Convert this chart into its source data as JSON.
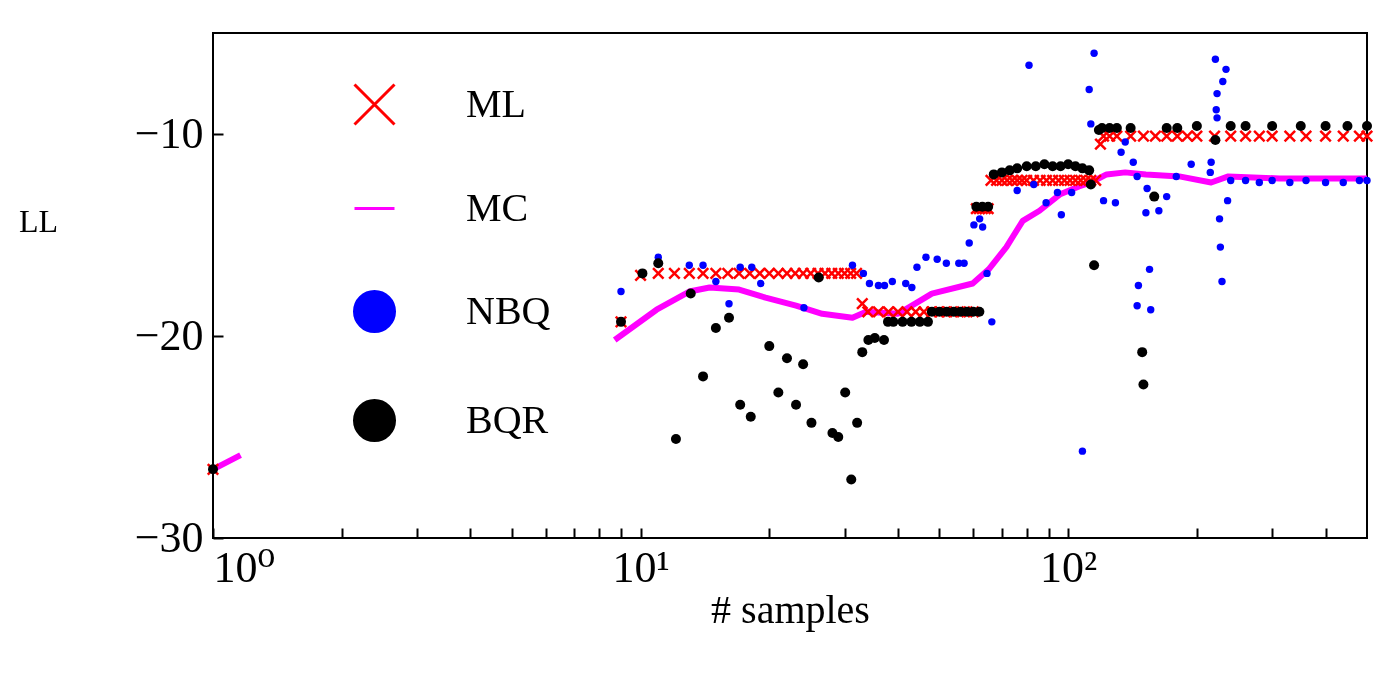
{
  "chart_data": {
    "type": "scatter",
    "xlabel": "# samples",
    "ylabel": "LL",
    "log": "x",
    "grid": false,
    "legend": "top left",
    "xlim": [
      1,
      500
    ],
    "ylim": [
      -30,
      -5
    ],
    "xticks": [
      {
        "value": 1,
        "label": "10⁰"
      },
      {
        "value": 2,
        "label": null
      },
      {
        "value": 3,
        "label": null
      },
      {
        "value": 4,
        "label": null
      },
      {
        "value": 5,
        "label": null
      },
      {
        "value": 6,
        "label": null
      },
      {
        "value": 7,
        "label": null
      },
      {
        "value": 8,
        "label": null
      },
      {
        "value": 9,
        "label": null
      },
      {
        "value": 10,
        "label": "10¹"
      },
      {
        "value": 20,
        "label": null
      },
      {
        "value": 30,
        "label": null
      },
      {
        "value": 40,
        "label": null
      },
      {
        "value": 50,
        "label": null
      },
      {
        "value": 60,
        "label": null
      },
      {
        "value": 70,
        "label": null
      },
      {
        "value": 80,
        "label": null
      },
      {
        "value": 90,
        "label": null
      },
      {
        "value": 100,
        "label": "10²"
      },
      {
        "value": 200,
        "label": null
      },
      {
        "value": 300,
        "label": null
      },
      {
        "value": 400,
        "label": null
      }
    ],
    "yticks": [
      -30,
      -20,
      -10
    ],
    "series": [
      {
        "name": "ML",
        "marker": "cross",
        "color": "#ff0000",
        "x": [
          1,
          9.0,
          10.0,
          11,
          12,
          13,
          14,
          15,
          16,
          17,
          18,
          19,
          20,
          21,
          22,
          23,
          24,
          25,
          26,
          27,
          28,
          29,
          30,
          31,
          32,
          33,
          34,
          36,
          38,
          40,
          42,
          44,
          46,
          48,
          50,
          52,
          54,
          56,
          58,
          60,
          61,
          62,
          63,
          64,
          65,
          66,
          68,
          70,
          72,
          74,
          76,
          78,
          80,
          83,
          86,
          89,
          92,
          95,
          98,
          101,
          104,
          107,
          110,
          113,
          116,
          119,
          121,
          125,
          130,
          140,
          150,
          160,
          170,
          180,
          190,
          200,
          220,
          240,
          260,
          280,
          300,
          330,
          360,
          400,
          440,
          480,
          500
        ],
        "values": [
          -26.6,
          -19.3,
          -17.0,
          -16.9,
          -16.9,
          -16.9,
          -16.9,
          -16.9,
          -16.9,
          -16.9,
          -16.9,
          -16.9,
          -16.9,
          -16.9,
          -16.9,
          -16.9,
          -16.9,
          -16.9,
          -16.9,
          -16.9,
          -16.9,
          -16.9,
          -16.9,
          -16.9,
          -16.9,
          -18.4,
          -18.8,
          -18.8,
          -18.8,
          -18.8,
          -18.8,
          -18.8,
          -18.8,
          -18.8,
          -18.8,
          -18.8,
          -18.8,
          -18.8,
          -18.8,
          -18.8,
          -13.7,
          -13.7,
          -13.7,
          -13.7,
          -13.7,
          -12.3,
          -12.3,
          -12.3,
          -12.3,
          -12.3,
          -12.3,
          -12.3,
          -12.3,
          -12.3,
          -12.3,
          -12.3,
          -12.3,
          -12.3,
          -12.3,
          -12.3,
          -12.3,
          -12.3,
          -12.3,
          -12.3,
          -12.3,
          -10.5,
          -10.1,
          -10.1,
          -10.1,
          -10.1,
          -10.1,
          -10.1,
          -10.1,
          -10.1,
          -10.1,
          -10.1,
          -10.1,
          -10.1,
          -10.1,
          -10.1,
          -10.1,
          -10.1,
          -10.1,
          -10.1,
          -10.1,
          -10.1,
          -10.1
        ]
      },
      {
        "name": "MC",
        "type": "line",
        "marker": "none",
        "line_style": "solid",
        "color": "#ff00ff",
        "x": [
          1,
          1.16,
          3,
          8.7,
          10.9,
          13.0,
          14.5,
          17.0,
          19.6,
          23.1,
          26.6,
          31.3,
          33.7,
          40,
          45.5,
          48.0,
          59.8,
          65.2,
          71.7,
          78.3,
          85.7,
          95.5,
          106,
          113,
          123,
          136,
          152,
          182,
          216,
          237,
          312,
          372,
          500
        ],
        "values": [
          -26.6,
          -25.9,
          null,
          -20.2,
          -18.7,
          -17.8,
          -17.6,
          -17.7,
          -18.1,
          -18.5,
          -18.9,
          -19.1,
          -18.8,
          -18.9,
          -18.2,
          -17.9,
          -17.4,
          -16.7,
          -15.6,
          -14.3,
          -13.8,
          -13.0,
          -12.6,
          -12.4,
          -12.0,
          -11.9,
          -12.0,
          -12.1,
          -12.4,
          -12.1,
          -12.2,
          -12.2,
          -12.2
        ]
      },
      {
        "name": "NBQ",
        "marker": "circle",
        "color": "#0000ff",
        "x": [
          9.0,
          11.0,
          13.0,
          14.0,
          15.0,
          16.1,
          17.1,
          18.2,
          19.1,
          24.1,
          31.3,
          33.2,
          34.3,
          36.0,
          37.2,
          38.8,
          41.7,
          43.1,
          44.3,
          46.5,
          49.4,
          51.9,
          55.5,
          57.1,
          58.7,
          60.2,
          62.1,
          63.1,
          64.6,
          66.3,
          76.0,
          81,
          83.1,
          88.8,
          94.4,
          96.4,
          101.9,
          108,
          112,
          113,
          115,
          121,
          129,
          133,
          136,
          142,
          145,
          145,
          146,
          152,
          153,
          155,
          156,
          163,
          170,
          179,
          194,
          215,
          216,
          221,
          222,
          223,
          223,
          226,
          227,
          229,
          230,
          234,
          236,
          240,
          260,
          280,
          300,
          330,
          360,
          400,
          440,
          480,
          500
        ],
        "values": [
          -17.8,
          -16.1,
          -16.5,
          -16.5,
          -17.3,
          -18.4,
          -16.6,
          -16.6,
          -17.4,
          -18.6,
          -16.5,
          -16.9,
          -17.4,
          -17.5,
          -17.5,
          -17.3,
          -17.4,
          -17.6,
          -16.6,
          -16.1,
          -16.2,
          -16.4,
          -16.4,
          -16.4,
          -15.4,
          -14.5,
          -14.2,
          -14.6,
          -16.9,
          -19.3,
          -12.8,
          -6.6,
          -12.5,
          -13.4,
          -12.9,
          -14.0,
          -12.9,
          -25.7,
          -7.8,
          -9.5,
          -6.0,
          -13.3,
          -13.4,
          -10.9,
          -10.4,
          -11.4,
          -12.1,
          -18.5,
          -17.5,
          -13.9,
          -12.7,
          -16.7,
          -18.7,
          -13.8,
          -13.1,
          -12.1,
          -11.5,
          -11.9,
          -11.4,
          -6.3,
          -8.8,
          -8.0,
          -9.2,
          -14.2,
          -15.6,
          -17.3,
          -7.4,
          -6.8,
          -13.3,
          -12.3,
          -12.3,
          -12.4,
          -12.3,
          -12.4,
          -12.3,
          -12.4,
          -12.4,
          -12.3,
          -12.3
        ]
      },
      {
        "name": "BQR",
        "marker": "circle",
        "color": "#000000",
        "x": [
          1,
          9.0,
          10.1,
          11.0,
          12.1,
          13.1,
          14.0,
          15.0,
          16.1,
          17.1,
          18.1,
          20.0,
          21.0,
          22.0,
          23.1,
          24.0,
          25.1,
          26.1,
          28.1,
          29.0,
          30.1,
          31.1,
          32.1,
          33.0,
          34.1,
          35.3,
          37.1,
          37.9,
          39,
          41,
          43,
          45,
          47,
          48,
          50,
          52,
          54,
          56,
          58,
          60,
          62,
          61,
          63,
          65,
          67,
          70,
          73,
          76,
          80,
          84,
          88,
          92,
          96,
          100,
          104,
          108,
          112,
          113,
          115,
          118,
          120,
          125,
          130,
          140,
          149,
          150,
          159,
          170,
          180,
          200,
          221,
          240,
          260,
          300,
          350,
          400,
          450,
          500
        ],
        "values": [
          -26.6,
          -19.3,
          -16.9,
          -16.4,
          -25.1,
          -17.9,
          -22.0,
          -19.6,
          -19.1,
          -23.4,
          -24.0,
          -20.5,
          -22.8,
          -21.1,
          -23.4,
          -21.4,
          -24.3,
          -17.1,
          -24.8,
          -25.0,
          -22.8,
          -27.1,
          -24.3,
          -20.8,
          -20.2,
          -20.1,
          -20.2,
          -19.3,
          -19.3,
          -19.3,
          -19.3,
          -19.3,
          -19.3,
          -18.8,
          -18.8,
          -18.8,
          -18.8,
          -18.8,
          -18.8,
          -18.8,
          -18.8,
          -13.6,
          -13.6,
          -13.6,
          -12.0,
          -11.9,
          -11.8,
          -11.7,
          -11.6,
          -11.6,
          -11.5,
          -11.6,
          -11.6,
          -11.5,
          -11.6,
          -11.7,
          -11.8,
          -12.5,
          -16.5,
          -9.8,
          -9.7,
          -9.7,
          -9.7,
          -9.7,
          -20.8,
          -22.4,
          -13.1,
          -9.7,
          -9.7,
          -9.6,
          -10.3,
          -9.6,
          -9.6,
          -9.6,
          -9.6,
          -9.6,
          -9.6,
          -9.6
        ]
      }
    ]
  }
}
